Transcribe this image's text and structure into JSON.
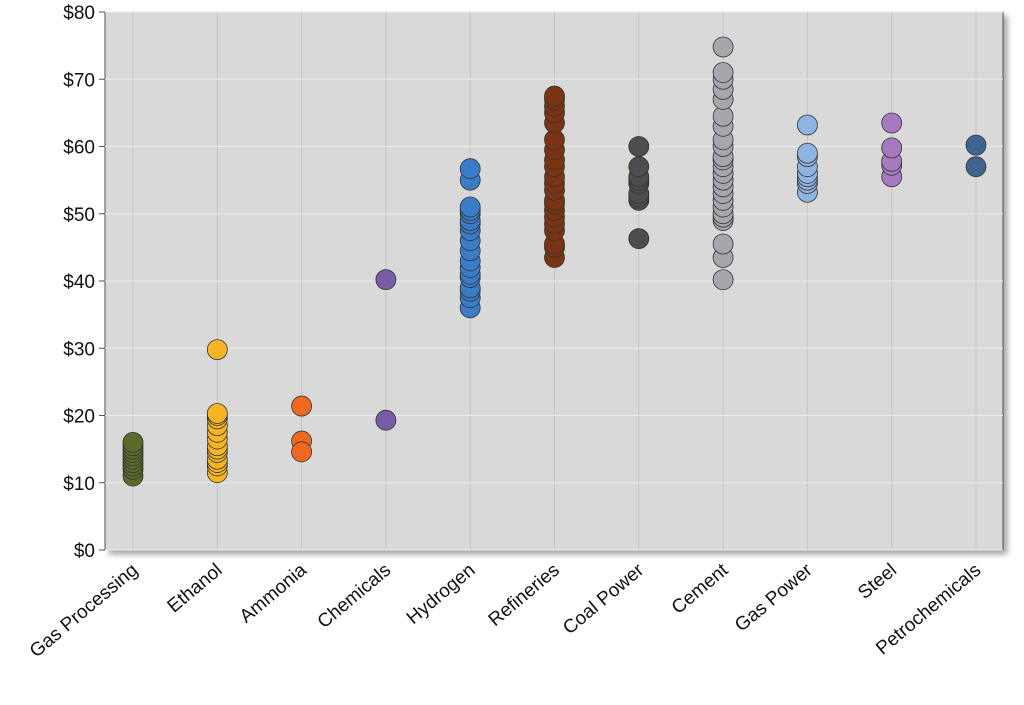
{
  "chart_data": {
    "type": "strip",
    "categories": [
      "Gas Processing",
      "Ethanol",
      "Ammonia",
      "Chemicals",
      "Hydrogen",
      "Refineries",
      "Coal Power",
      "Cement",
      "Gas Power",
      "Steel",
      "Petrochemicals"
    ],
    "colors": [
      "#5a6b2a",
      "#f6b523",
      "#ef6a20",
      "#7a5ca6",
      "#3a7cc8",
      "#7a3414",
      "#4c4c51",
      "#a7a6ac",
      "#8fb3e2",
      "#a67abe",
      "#3e6491"
    ],
    "values": [
      [
        11,
        12,
        12.5,
        13,
        13.5,
        14,
        14.5,
        15,
        15.5,
        16
      ],
      [
        11.5,
        12.5,
        13,
        13.5,
        14.5,
        15,
        15.5,
        16.5,
        17.5,
        18.5,
        19.5,
        20,
        20.3,
        29.8
      ],
      [
        21.4,
        16.2,
        14.6
      ],
      [
        40.2,
        19.3
      ],
      [
        36,
        37.5,
        38.5,
        39,
        40.5,
        41,
        42,
        43,
        44.5,
        46,
        47.5,
        48.5,
        49,
        50,
        50.5,
        51,
        55,
        56.7
      ],
      [
        43.5,
        45,
        45.5,
        47.5,
        48.5,
        49.5,
        50.5,
        51.5,
        52,
        53.5,
        54.5,
        55.5,
        57,
        58,
        59.5,
        61,
        63.5,
        65,
        66,
        67,
        67.5
      ],
      [
        46.3,
        52,
        52.5,
        53,
        54.5,
        55,
        55.5,
        57,
        60
      ],
      [
        40.2,
        43.5,
        45.5,
        49,
        49.5,
        50,
        51,
        52,
        53,
        54,
        55,
        56,
        57,
        58,
        58.5,
        60,
        61,
        63,
        64.5,
        67,
        68.5,
        70,
        71,
        74.8
      ],
      [
        53.2,
        54.5,
        55,
        55.5,
        56,
        57,
        58.5,
        59,
        63.2
      ],
      [
        55.5,
        57.2,
        57.8,
        59.8,
        63.5
      ],
      [
        57,
        60.2
      ]
    ],
    "ylim": [
      0,
      80
    ],
    "yticks": [
      {
        "value": 0,
        "label": "$0"
      },
      {
        "value": 10,
        "label": "$10"
      },
      {
        "value": 20,
        "label": "$20"
      },
      {
        "value": 30,
        "label": "$30"
      },
      {
        "value": 40,
        "label": "$40"
      },
      {
        "value": 50,
        "label": "$50"
      },
      {
        "value": 60,
        "label": "$60"
      },
      {
        "value": 70,
        "label": "$70"
      },
      {
        "value": 80,
        "label": "$80"
      }
    ],
    "grid": true
  }
}
